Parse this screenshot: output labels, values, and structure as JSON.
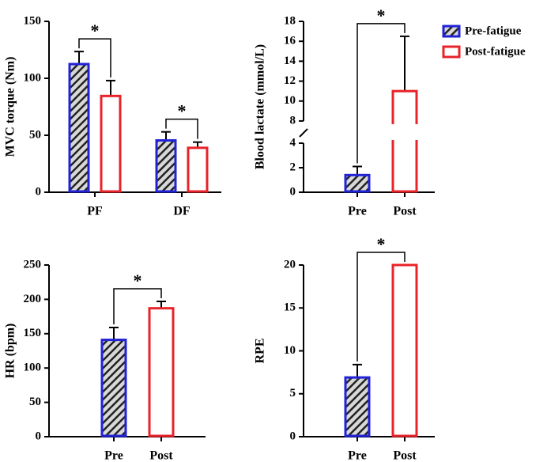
{
  "chart_data": [
    {
      "type": "bar",
      "ylabel": "MVC torque (Nm)",
      "categories": [
        "PF",
        "DF"
      ],
      "series": [
        {
          "name": "Pre-fatigue",
          "color": "#2222d6",
          "hatch": true,
          "values": [
            112.5,
            45.5
          ],
          "errors": [
            11,
            7.5
          ]
        },
        {
          "name": "Post-fatigue",
          "color": "#e8232a",
          "hatch": false,
          "values": [
            84.5,
            39
          ],
          "errors": [
            13.5,
            5
          ]
        }
      ],
      "ylim": [
        0,
        150
      ],
      "yticks": [
        0,
        50,
        100,
        150
      ],
      "annotations": [
        "*",
        "*"
      ]
    },
    {
      "type": "bar",
      "ylabel": "Blood lactate (mmol/L)",
      "categories": [
        "Pre",
        "Post"
      ],
      "values": [
        1.4,
        11
      ],
      "errors": [
        0.7,
        5.5
      ],
      "colors": [
        "#2222d6",
        "#e8232a"
      ],
      "hatch": [
        true,
        false
      ],
      "ylim": [
        0,
        18
      ],
      "ybreak": [
        4,
        8
      ],
      "yticks": [
        0,
        2,
        4,
        8,
        10,
        12,
        14,
        16,
        18
      ],
      "annotations": [
        "*"
      ]
    },
    {
      "type": "bar",
      "ylabel": "HR (bpm)",
      "categories": [
        "Pre",
        "Post"
      ],
      "values": [
        141,
        187
      ],
      "errors": [
        18,
        10
      ],
      "colors": [
        "#2222d6",
        "#e8232a"
      ],
      "hatch": [
        true,
        false
      ],
      "ylim": [
        0,
        250
      ],
      "yticks": [
        0,
        50,
        100,
        150,
        200,
        250
      ],
      "annotations": [
        "*"
      ]
    },
    {
      "type": "bar",
      "ylabel": "RPE",
      "categories": [
        "Pre",
        "Post"
      ],
      "values": [
        6.9,
        20
      ],
      "errors": [
        1.5,
        0
      ],
      "colors": [
        "#2222d6",
        "#e8232a"
      ],
      "hatch": [
        true,
        false
      ],
      "ylim": [
        0,
        20
      ],
      "yticks": [
        0,
        5,
        10,
        15,
        20
      ],
      "annotations": [
        "*"
      ]
    }
  ]
}
